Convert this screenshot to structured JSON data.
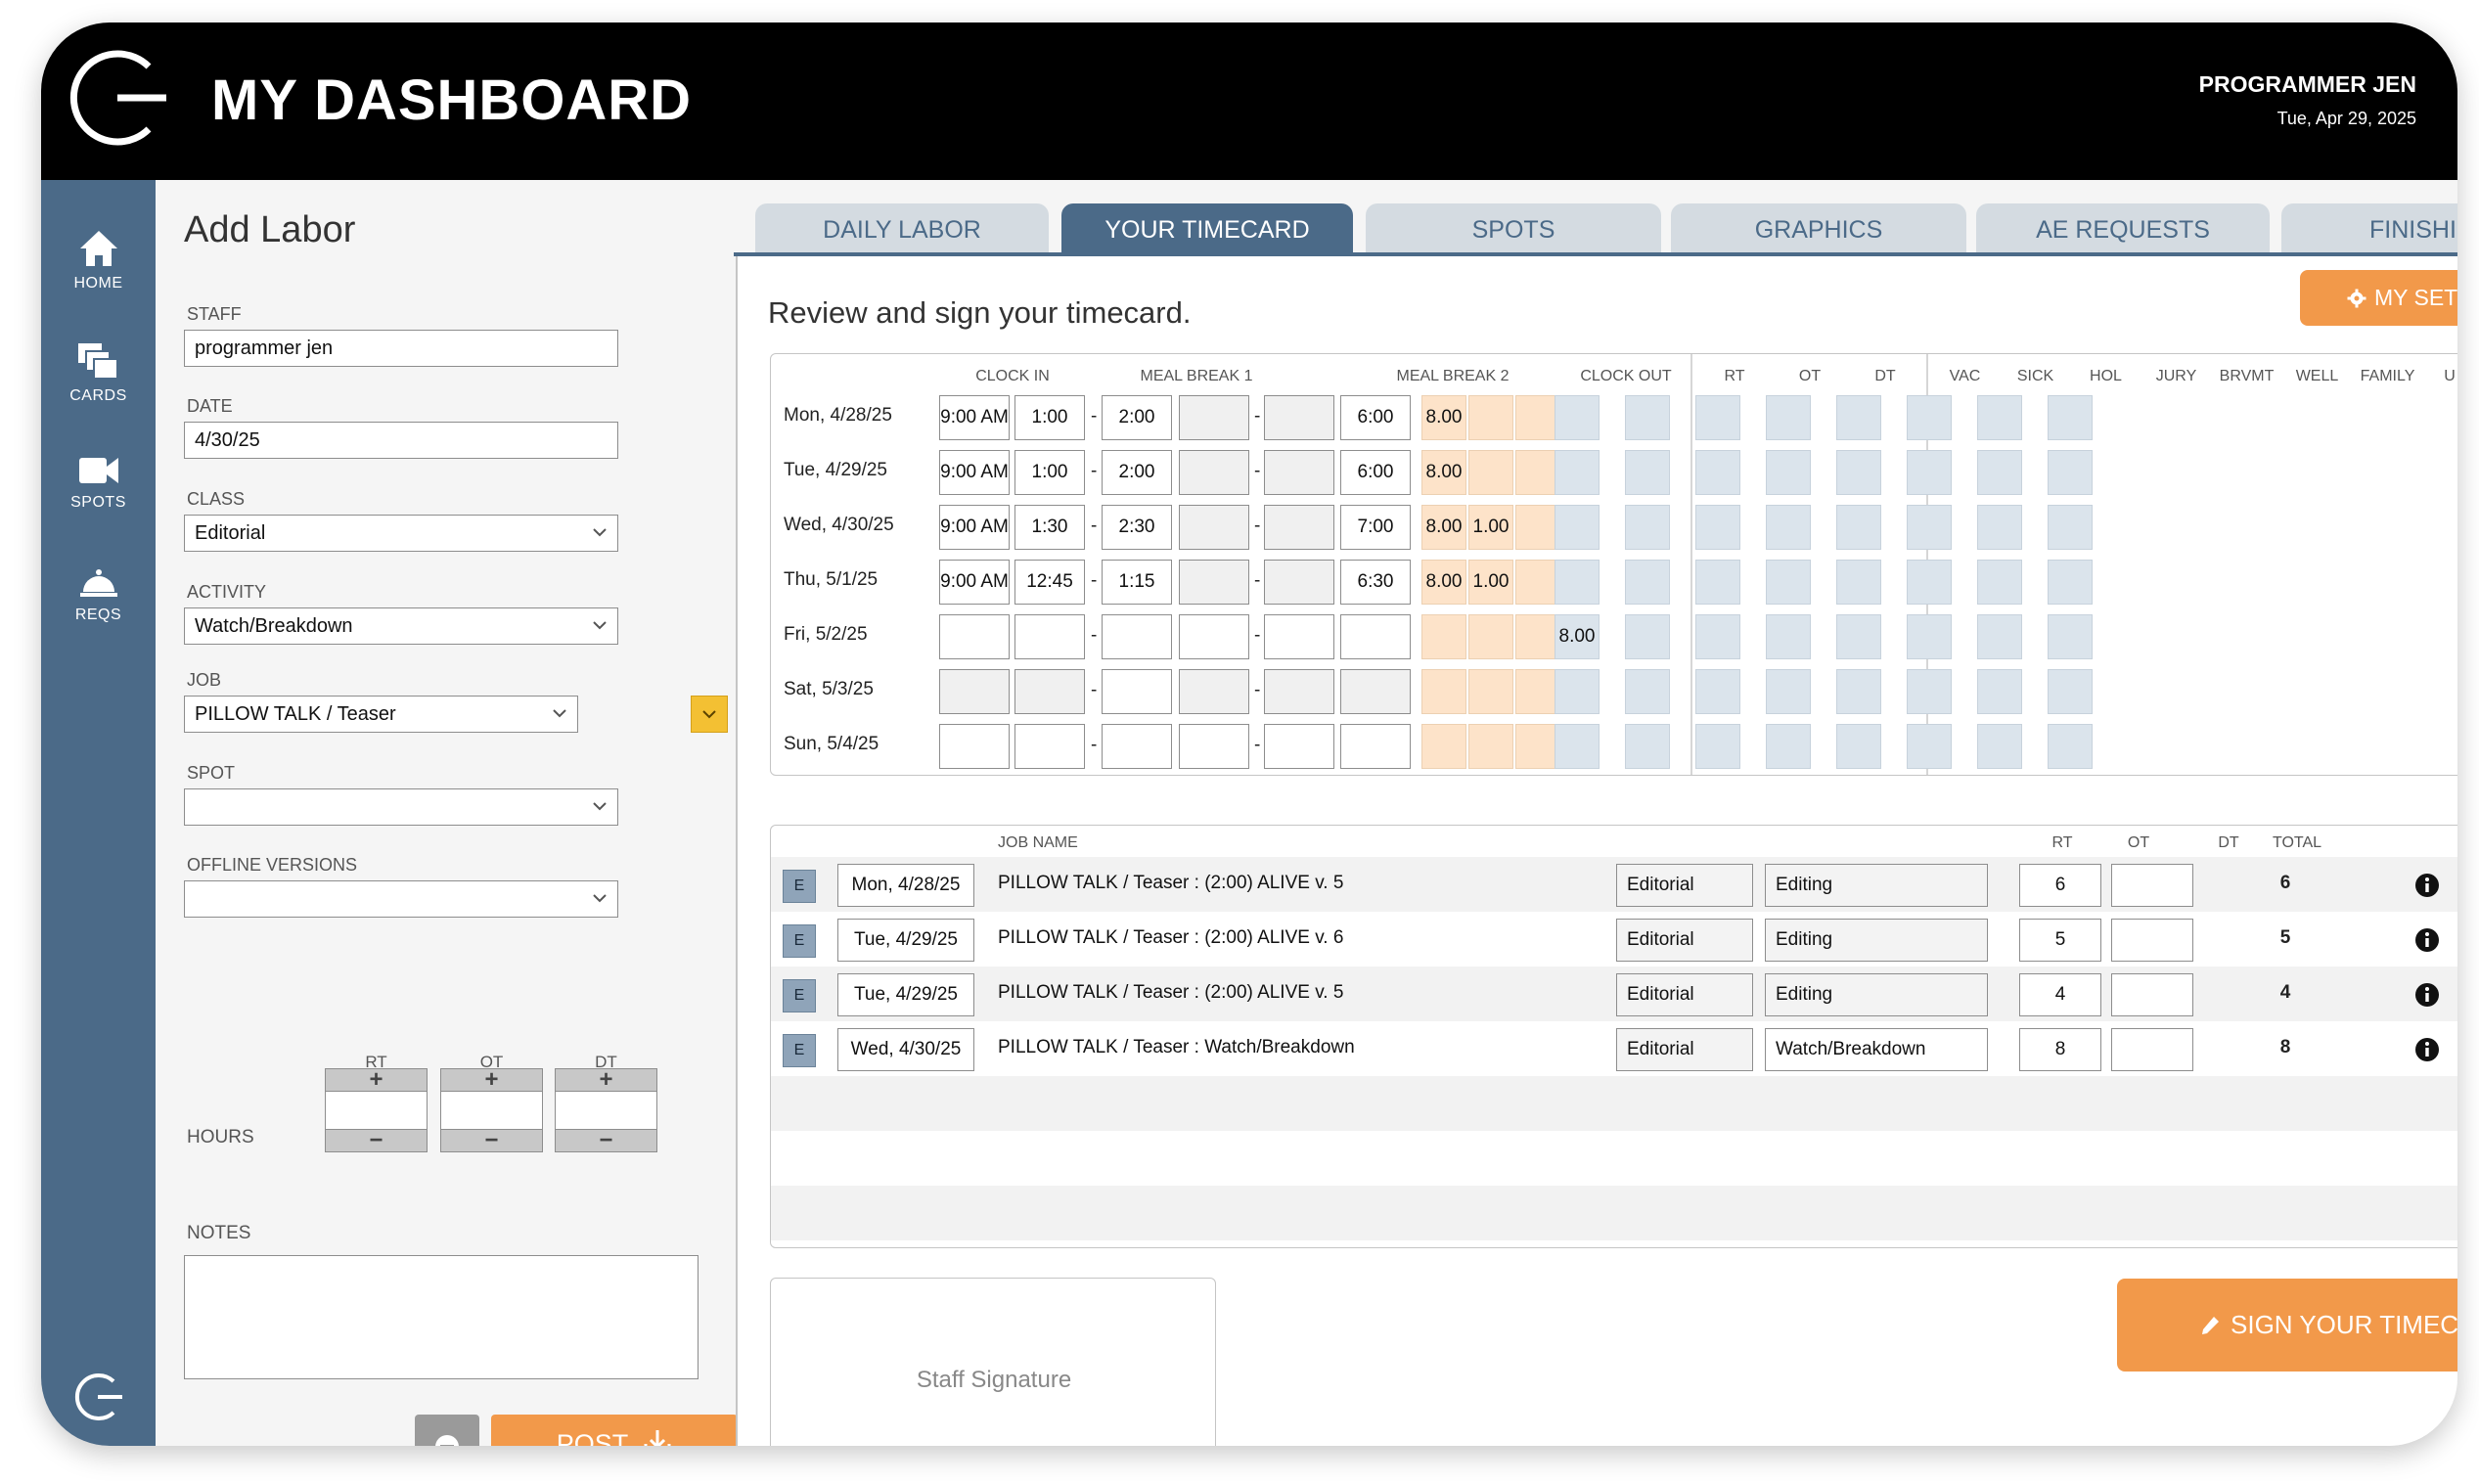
{
  "header": {
    "title": "MY DASHBOARD",
    "user_name": "PROGRAMMER JEN",
    "date": "Tue, Apr 29, 2025"
  },
  "nav": {
    "items": [
      {
        "label": "HOME",
        "icon": "home-icon"
      },
      {
        "label": "CARDS",
        "icon": "cards-icon"
      },
      {
        "label": "SPOTS",
        "icon": "video-camera-icon"
      },
      {
        "label": "REQS",
        "icon": "service-bell-icon"
      }
    ]
  },
  "form": {
    "title": "Add Labor",
    "staff_label": "STAFF",
    "staff_value": "programmer jen",
    "date_label": "DATE",
    "date_value": "4/30/25",
    "class_label": "CLASS",
    "class_value": "Editorial",
    "activity_label": "ACTIVITY",
    "activity_value": "Watch/Breakdown",
    "job_label": "JOB",
    "job_value": "PILLOW TALK / Teaser",
    "spot_label": "SPOT",
    "spot_value": "",
    "offline_label": "OFFLINE VERSIONS",
    "offline_value": "",
    "hours_label": "HOURS",
    "rt_label": "RT",
    "ot_label": "OT",
    "dt_label": "DT",
    "plus": "+",
    "minus": "−",
    "notes_label": "NOTES",
    "post_label": "POST"
  },
  "tabs": [
    "DAILY LABOR",
    "YOUR TIMECARD",
    "SPOTS",
    "GRAPHICS",
    "AE REQUESTS",
    "FINISHIN"
  ],
  "active_tab": "YOUR TIMECARD",
  "timecard": {
    "heading": "Review and sign your timecard.",
    "settings_label": "MY SET",
    "columns": {
      "clock_in": "CLOCK IN",
      "meal1": "MEAL BREAK 1",
      "meal2": "MEAL BREAK 2",
      "clock_out": "CLOCK OUT",
      "rt": "RT",
      "ot": "OT",
      "dt": "DT",
      "vac": "VAC",
      "sick": "SICK",
      "hol": "HOL",
      "jury": "JURY",
      "brvmt": "BRVMT",
      "well": "WELL",
      "family": "FAMILY",
      "extra": "U"
    },
    "rows": [
      {
        "day": "Mon, 4/28/25",
        "clock_in": "9:00 AM",
        "m1_start": "1:00 PM",
        "m1_end": "2:00 PM",
        "m2_start": "",
        "m2_end": "",
        "clock_out": "6:00 PM",
        "rt": "8.00",
        "ot": "",
        "dt": "",
        "vac": ""
      },
      {
        "day": "Tue, 4/29/25",
        "clock_in": "9:00 AM",
        "m1_start": "1:00 PM",
        "m1_end": "2:00 PM",
        "m2_start": "",
        "m2_end": "",
        "clock_out": "6:00 PM",
        "rt": "8.00",
        "ot": "",
        "dt": "",
        "vac": ""
      },
      {
        "day": "Wed, 4/30/25",
        "clock_in": "9:00 AM",
        "m1_start": "1:30 PM",
        "m1_end": "2:30 PM",
        "m2_start": "",
        "m2_end": "",
        "clock_out": "7:00 PM",
        "rt": "8.00",
        "ot": "1.00",
        "dt": "",
        "vac": ""
      },
      {
        "day": "Thu, 5/1/25",
        "clock_in": "9:00 AM",
        "m1_start": "12:45 PM",
        "m1_end": "1:15 PM",
        "m2_start": "",
        "m2_end": "",
        "clock_out": "6:30 PM",
        "rt": "8.00",
        "ot": "1.00",
        "dt": "",
        "vac": ""
      },
      {
        "day": "Fri, 5/2/25",
        "clock_in": "",
        "m1_start": "",
        "m1_end": "",
        "m2_start": "",
        "m2_end": "",
        "clock_out": "",
        "rt": "",
        "ot": "",
        "dt": "",
        "vac": "8.00"
      },
      {
        "day": "Sat, 5/3/25",
        "clock_in": "",
        "m1_start": "",
        "m1_end": "",
        "m2_start": "",
        "m2_end": "",
        "clock_out": "",
        "rt": "",
        "ot": "",
        "dt": "",
        "vac": ""
      },
      {
        "day": "Sun, 5/4/25",
        "clock_in": "",
        "m1_start": "",
        "m1_end": "",
        "m2_start": "",
        "m2_end": "",
        "clock_out": "",
        "rt": "",
        "ot": "",
        "dt": "",
        "vac": ""
      }
    ],
    "dash": "-"
  },
  "jobs": {
    "columns": {
      "job_name": "JOB NAME",
      "rt": "RT",
      "ot": "OT",
      "dt": "DT",
      "total": "TOTAL"
    },
    "rows": [
      {
        "badge": "E",
        "date": "Mon, 4/28/25",
        "name": "PILLOW TALK / Teaser :  (2:00) ALIVE v. 5",
        "class": "Editorial",
        "activity": "Editing",
        "rt": "6",
        "ot": "",
        "total": "6"
      },
      {
        "badge": "E",
        "date": "Tue, 4/29/25",
        "name": "PILLOW TALK / Teaser :  (2:00) ALIVE v. 6",
        "class": "Editorial",
        "activity": "Editing",
        "rt": "5",
        "ot": "",
        "total": "5"
      },
      {
        "badge": "E",
        "date": "Tue, 4/29/25",
        "name": "PILLOW TALK / Teaser :  (2:00) ALIVE v. 5",
        "class": "Editorial",
        "activity": "Editing",
        "rt": "4",
        "ot": "",
        "total": "4"
      },
      {
        "badge": "E",
        "date": "Wed, 4/30/25",
        "name": "PILLOW TALK / Teaser : Watch/Breakdown",
        "class": "Editorial",
        "activity": "Watch/Breakdown",
        "rt": "8",
        "ot": "",
        "total": "8"
      }
    ]
  },
  "signature": {
    "placeholder": "Staff Signature",
    "button_label": "SIGN YOUR TIMECAR"
  },
  "colors": {
    "nav": "#4b6a88",
    "accent_orange": "#f2994a",
    "rt_fill": "#fde3c9",
    "leave_fill": "#dbe4ec",
    "job_dropdown": "#f3c033"
  }
}
